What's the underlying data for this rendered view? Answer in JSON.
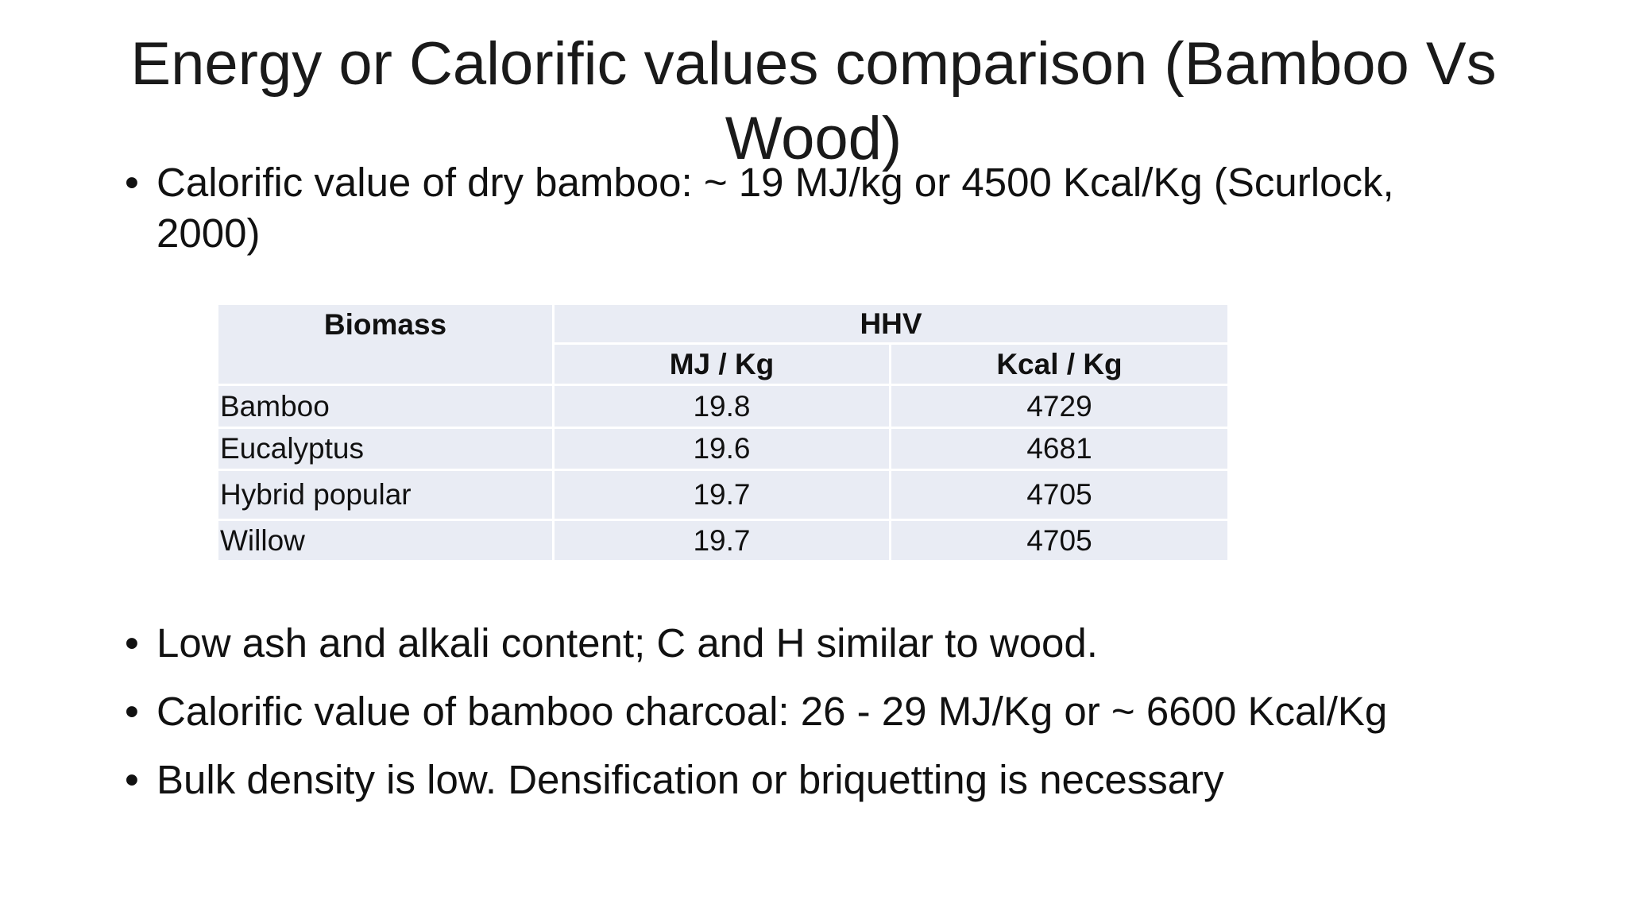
{
  "title": "Energy or Calorific values comparison (Bamboo Vs Wood)",
  "bullets_top": [
    "Calorific value of dry bamboo: ~ 19 MJ/kg or 4500 Kcal/Kg (Scurlock, 2000)"
  ],
  "table": {
    "header": [
      "Biomass",
      "HHV"
    ],
    "subheader": [
      "MJ / Kg",
      "Kcal / Kg"
    ],
    "rows": [
      [
        "Bamboo",
        "19.8",
        "4729"
      ],
      [
        "Eucalyptus",
        "19.6",
        "4681"
      ],
      [
        "Hybrid popular",
        "19.7",
        "4705"
      ],
      [
        "Willow",
        "19.7",
        "4705"
      ]
    ]
  },
  "bullets_bottom": [
    "Low ash and alkali content; C and H similar to wood.",
    "Calorific value of bamboo charcoal: 26 - 29 MJ/Kg or ~ 6600 Kcal/Kg",
    "Bulk density is low. Densification or briquetting is necessary"
  ]
}
